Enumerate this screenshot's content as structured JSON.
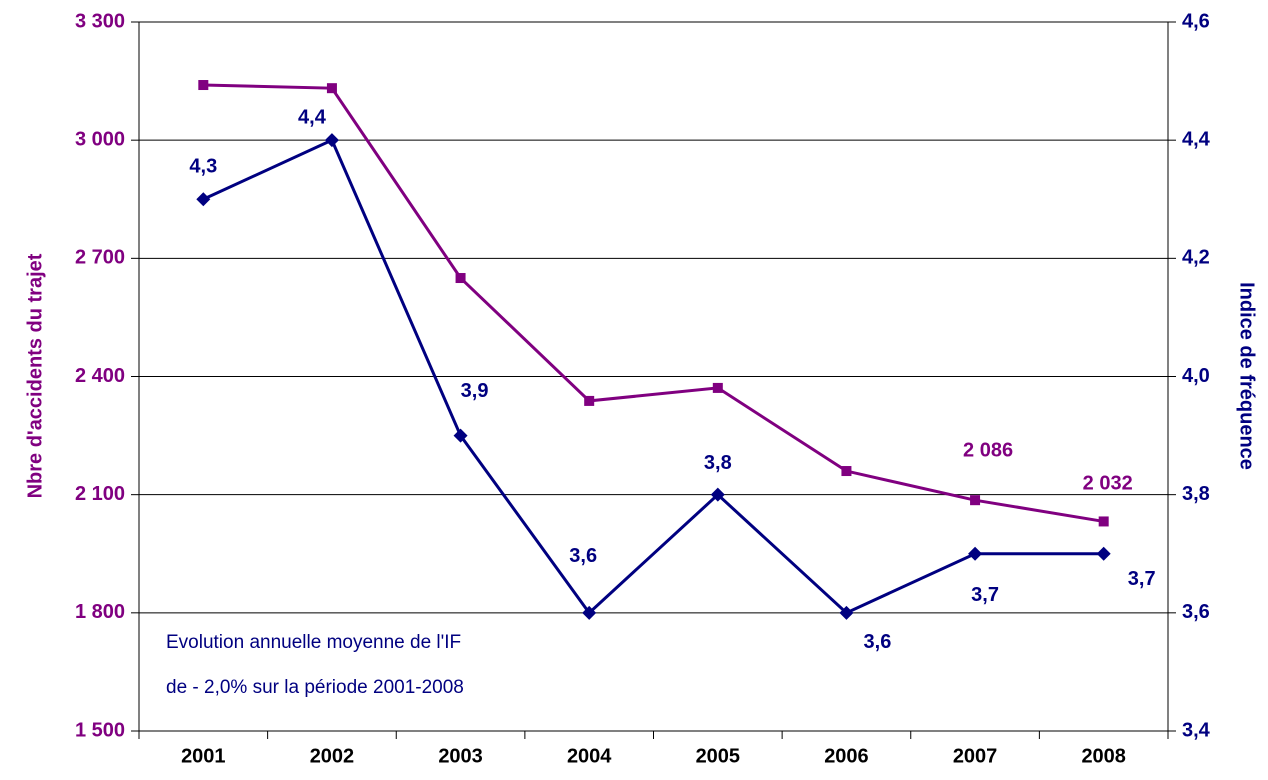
{
  "chart_data": {
    "type": "line",
    "ylabel": "Nbre d'accidents du trajet",
    "y2label": "Indice de fréquence",
    "annotations": [
      "Evolution annuelle moyenne de l'IF",
      "de - 2,0% sur la période 2001-2008"
    ],
    "categories": [
      "2001",
      "2002",
      "2003",
      "2004",
      "2005",
      "2006",
      "2007",
      "2008"
    ],
    "series": [
      {
        "name": "Nbre d'accidents du trajet",
        "color": "#800080",
        "marker": "square",
        "values": [
          3140,
          3132,
          2650,
          2338,
          2371,
          2160,
          2086,
          2032
        ],
        "value_labels": [
          null,
          null,
          null,
          null,
          null,
          null,
          "2 086",
          "2 032"
        ]
      },
      {
        "name": "Indice de fréquence",
        "color": "#000080",
        "axis": "y2",
        "marker": "diamond",
        "values": [
          4.3,
          4.4,
          3.9,
          3.6,
          3.8,
          3.6,
          3.7,
          3.7
        ],
        "value_labels": [
          "4,3",
          "4,4",
          "3,9",
          "3,6",
          "3,8",
          "3,6",
          "3,7",
          "3,7"
        ]
      }
    ],
    "ylim": [
      1500,
      3300
    ],
    "yticks": [
      {
        "value": 1500,
        "label": "1 500"
      },
      {
        "value": 1800,
        "label": "1 800"
      },
      {
        "value": 2100,
        "label": "2 100"
      },
      {
        "value": 2400,
        "label": "2 400"
      },
      {
        "value": 2700,
        "label": "2 700"
      },
      {
        "value": 3000,
        "label": "3 000"
      },
      {
        "value": 3300,
        "label": "3 300"
      }
    ],
    "y2lim": [
      3.4,
      4.6
    ],
    "y2ticks": [
      {
        "value": 3.4,
        "label": "3,4"
      },
      {
        "value": 3.6,
        "label": "3,6"
      },
      {
        "value": 3.8,
        "label": "3,8"
      },
      {
        "value": 4.0,
        "label": "4,0"
      },
      {
        "value": 4.2,
        "label": "4,2"
      },
      {
        "value": 4.4,
        "label": "4,4"
      },
      {
        "value": 4.6,
        "label": "4,6"
      }
    ],
    "grid": true
  }
}
